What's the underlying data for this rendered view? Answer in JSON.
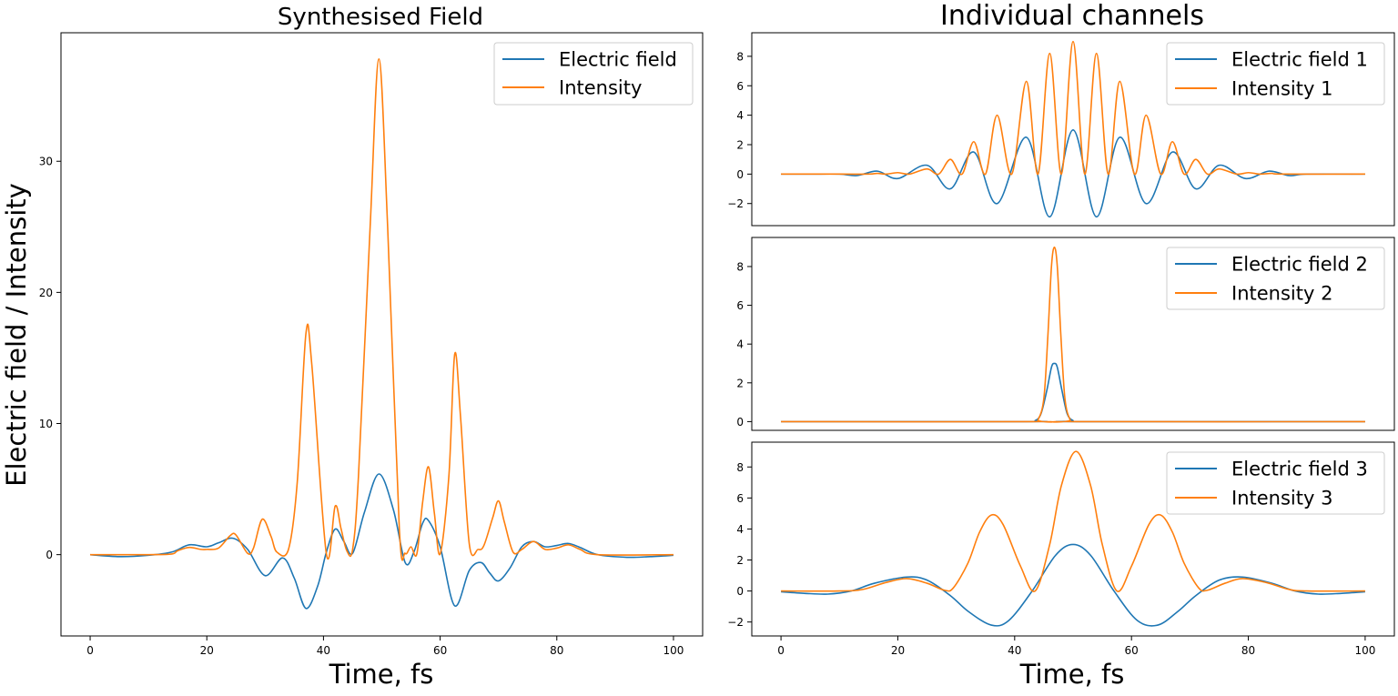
{
  "figure": {
    "left_title": "Synthesised Field",
    "right_title": "Individual channels",
    "left_xlabel": "Time, fs",
    "right_xlabel": "Time, fs",
    "left_ylabel": "Electric field / Intensity"
  },
  "colors": {
    "field": "#1f77b4",
    "intensity": "#ff7f0e"
  },
  "chart_data": [
    {
      "id": "synth",
      "type": "line",
      "title": "Synthesised Field",
      "xlabel": "Time, fs",
      "ylabel": "Electric field / Intensity",
      "xlim": [
        -5,
        105
      ],
      "ylim": [
        -6.2,
        39.8
      ],
      "xticks": [
        0,
        20,
        40,
        60,
        80,
        100
      ],
      "yticks": [
        0,
        10,
        20,
        30
      ],
      "legend": "top-right",
      "grid": false,
      "series": [
        {
          "name": "Electric field",
          "color": "#1f77b4",
          "points": [
            [
              0,
              0
            ],
            [
              5,
              -0.15
            ],
            [
              10,
              -0.05
            ],
            [
              14,
              0.2
            ],
            [
              17,
              0.75
            ],
            [
              20,
              0.6
            ],
            [
              22,
              0.9
            ],
            [
              24.5,
              1.25
            ],
            [
              27,
              0.4
            ],
            [
              30,
              -1.6
            ],
            [
              33,
              -0.25
            ],
            [
              35,
              -1.8
            ],
            [
              37,
              -4.1
            ],
            [
              39,
              -2.4
            ],
            [
              40.5,
              0.2
            ],
            [
              42,
              1.95
            ],
            [
              43.5,
              1.0
            ],
            [
              45,
              0.1
            ],
            [
              47,
              3.2
            ],
            [
              49.5,
              6.15
            ],
            [
              52,
              3.4
            ],
            [
              54,
              -0.6
            ],
            [
              55.5,
              0.2
            ],
            [
              57,
              2.4
            ],
            [
              58,
              2.6
            ],
            [
              60,
              0.6
            ],
            [
              62.5,
              -3.9
            ],
            [
              65,
              -1.2
            ],
            [
              67,
              -0.6
            ],
            [
              68.5,
              -1.4
            ],
            [
              70,
              -2.0
            ],
            [
              72,
              -1.0
            ],
            [
              74,
              0.6
            ],
            [
              76,
              1.0
            ],
            [
              78,
              0.6
            ],
            [
              80,
              0.7
            ],
            [
              82,
              0.85
            ],
            [
              84,
              0.55
            ],
            [
              87,
              0.0
            ],
            [
              92,
              -0.2
            ],
            [
              96,
              -0.15
            ],
            [
              100,
              -0.05
            ]
          ]
        },
        {
          "name": "Intensity",
          "color": "#ff7f0e",
          "points": [
            [
              0,
              0
            ],
            [
              10,
              0
            ],
            [
              14,
              0.05
            ],
            [
              15,
              0.3
            ],
            [
              17,
              0.55
            ],
            [
              19,
              0.4
            ],
            [
              20,
              0.4
            ],
            [
              22,
              0.5
            ],
            [
              24,
              1.45
            ],
            [
              25,
              1.5
            ],
            [
              27,
              0.1
            ],
            [
              28,
              0.5
            ],
            [
              29.5,
              2.7
            ],
            [
              31,
              1.4
            ],
            [
              32,
              0.2
            ],
            [
              34,
              0.4
            ],
            [
              35.5,
              5.5
            ],
            [
              37,
              16.9
            ],
            [
              38,
              14.5
            ],
            [
              40.5,
              0.05
            ],
            [
              42,
              3.7
            ],
            [
              43,
              2.0
            ],
            [
              44,
              0.3
            ],
            [
              45,
              0.4
            ],
            [
              46,
              6.0
            ],
            [
              48,
              25.0
            ],
            [
              49.5,
              37.8
            ],
            [
              51,
              25.0
            ],
            [
              53,
              2.0
            ],
            [
              54,
              0.1
            ],
            [
              55,
              0.6
            ],
            [
              56,
              0.05
            ],
            [
              57,
              4.0
            ],
            [
              58,
              6.7
            ],
            [
              59,
              3.2
            ],
            [
              60,
              0.05
            ],
            [
              61.5,
              6.0
            ],
            [
              62.5,
              15.3
            ],
            [
              63.5,
              10.5
            ],
            [
              65,
              0.8
            ],
            [
              66.5,
              0.4
            ],
            [
              67.5,
              0.7
            ],
            [
              69,
              2.8
            ],
            [
              70,
              4.1
            ],
            [
              71,
              2.5
            ],
            [
              72.5,
              0.2
            ],
            [
              74,
              0.4
            ],
            [
              76,
              1.0
            ],
            [
              78,
              0.4
            ],
            [
              80,
              0.5
            ],
            [
              82,
              0.75
            ],
            [
              84,
              0.4
            ],
            [
              87,
              0
            ],
            [
              100,
              0
            ]
          ]
        }
      ]
    },
    {
      "id": "ch1",
      "type": "line",
      "xlim": [
        -5,
        105
      ],
      "ylim": [
        -3.5,
        9.6
      ],
      "xticks": [],
      "yticks": [
        -2,
        0,
        2,
        4,
        6,
        8
      ],
      "legend": "top-right",
      "series": [
        {
          "name": "Electric field 1",
          "color": "#1f77b4",
          "points": [
            [
              0,
              0
            ],
            [
              5,
              0
            ],
            [
              10,
              0
            ],
            [
              13,
              -0.1
            ],
            [
              16.5,
              0.2
            ],
            [
              20,
              -0.3
            ],
            [
              25,
              0.6
            ],
            [
              29,
              -1.0
            ],
            [
              33,
              1.5
            ],
            [
              37,
              -2.0
            ],
            [
              42,
              2.5
            ],
            [
              46,
              -2.9
            ],
            [
              50,
              3.0
            ],
            [
              54,
              -2.9
            ],
            [
              58,
              2.5
            ],
            [
              62.5,
              -2.0
            ],
            [
              67,
              1.5
            ],
            [
              71,
              -1.0
            ],
            [
              75,
              0.6
            ],
            [
              79.5,
              -0.3
            ],
            [
              83.5,
              0.2
            ],
            [
              87,
              -0.1
            ],
            [
              90,
              0
            ],
            [
              100,
              0
            ]
          ]
        },
        {
          "name": "Intensity 1",
          "color": "#ff7f0e",
          "points": [
            [
              0,
              0
            ],
            [
              10,
              0
            ],
            [
              15,
              0
            ],
            [
              16.5,
              0.05
            ],
            [
              18,
              0
            ],
            [
              20,
              0.1
            ],
            [
              22,
              0
            ],
            [
              25,
              0.35
            ],
            [
              27,
              0
            ],
            [
              29,
              1.0
            ],
            [
              31,
              0
            ],
            [
              33,
              2.2
            ],
            [
              35,
              0
            ],
            [
              37,
              4.0
            ],
            [
              39.5,
              0
            ],
            [
              42,
              6.3
            ],
            [
              44,
              0
            ],
            [
              46,
              8.2
            ],
            [
              48,
              0
            ],
            [
              50,
              9.0
            ],
            [
              52,
              0
            ],
            [
              54,
              8.2
            ],
            [
              56,
              0
            ],
            [
              58,
              6.3
            ],
            [
              60.5,
              0
            ],
            [
              62.5,
              4.0
            ],
            [
              65,
              0
            ],
            [
              67,
              2.2
            ],
            [
              69,
              0
            ],
            [
              71,
              1.0
            ],
            [
              73,
              0
            ],
            [
              75,
              0.35
            ],
            [
              78,
              0
            ],
            [
              80,
              0.1
            ],
            [
              82,
              0
            ],
            [
              84,
              0.05
            ],
            [
              86,
              0
            ],
            [
              100,
              0
            ]
          ]
        }
      ]
    },
    {
      "id": "ch2",
      "type": "line",
      "xlim": [
        -5,
        105
      ],
      "ylim": [
        -0.45,
        9.5
      ],
      "xticks": [],
      "yticks": [
        0,
        2,
        4,
        6,
        8
      ],
      "legend": "top-right",
      "series": [
        {
          "name": "Electric field 2",
          "color": "#1f77b4",
          "points": [
            [
              0,
              0
            ],
            [
              42,
              0
            ],
            [
              43.5,
              0.05
            ],
            [
              44.5,
              0.4
            ],
            [
              45.5,
              1.6
            ],
            [
              46.3,
              2.8
            ],
            [
              46.8,
              3.0
            ],
            [
              47.3,
              2.8
            ],
            [
              48.1,
              1.6
            ],
            [
              49,
              0.4
            ],
            [
              50,
              0.05
            ],
            [
              51,
              0
            ],
            [
              100,
              0
            ]
          ]
        },
        {
          "name": "Intensity 2",
          "color": "#ff7f0e",
          "points": [
            [
              0,
              0
            ],
            [
              43,
              0
            ],
            [
              44,
              0.1
            ],
            [
              45,
              1.2
            ],
            [
              45.7,
              4.5
            ],
            [
              46.3,
              8.0
            ],
            [
              46.8,
              9.0
            ],
            [
              47.3,
              8.0
            ],
            [
              47.9,
              4.5
            ],
            [
              48.6,
              1.2
            ],
            [
              49.5,
              0.1
            ],
            [
              50.5,
              0
            ],
            [
              100,
              0
            ]
          ]
        }
      ]
    },
    {
      "id": "ch3",
      "type": "line",
      "xlabel": "Time, fs",
      "xlim": [
        -5,
        105
      ],
      "ylim": [
        -2.9,
        9.6
      ],
      "xticks": [
        0,
        20,
        40,
        60,
        80,
        100
      ],
      "yticks": [
        -2,
        0,
        2,
        4,
        6,
        8
      ],
      "legend": "top-right",
      "series": [
        {
          "name": "Electric field 3",
          "color": "#1f77b4",
          "points": [
            [
              0,
              -0.05
            ],
            [
              4,
              -0.15
            ],
            [
              8,
              -0.2
            ],
            [
              12,
              0.0
            ],
            [
              16,
              0.5
            ],
            [
              21.5,
              0.9
            ],
            [
              25,
              0.7
            ],
            [
              29,
              -0.3
            ],
            [
              32,
              -1.3
            ],
            [
              36,
              -2.2
            ],
            [
              39,
              -1.9
            ],
            [
              43,
              0.0
            ],
            [
              47,
              2.3
            ],
            [
              50,
              3.0
            ],
            [
              53,
              2.3
            ],
            [
              57,
              0.0
            ],
            [
              61,
              -1.9
            ],
            [
              64.5,
              -2.2
            ],
            [
              68,
              -1.3
            ],
            [
              71,
              -0.3
            ],
            [
              75,
              0.7
            ],
            [
              79,
              0.9
            ],
            [
              84,
              0.5
            ],
            [
              88,
              0.0
            ],
            [
              92,
              -0.2
            ],
            [
              96,
              -0.15
            ],
            [
              100,
              -0.05
            ]
          ]
        },
        {
          "name": "Intensity 3",
          "color": "#ff7f0e",
          "points": [
            [
              0,
              0
            ],
            [
              10,
              0
            ],
            [
              14,
              0.1
            ],
            [
              18,
              0.55
            ],
            [
              21.5,
              0.8
            ],
            [
              25,
              0.5
            ],
            [
              28,
              0.05
            ],
            [
              29.5,
              0.2
            ],
            [
              32,
              1.8
            ],
            [
              34,
              3.8
            ],
            [
              36,
              4.9
            ],
            [
              38,
              4.3
            ],
            [
              41,
              1.6
            ],
            [
              43.5,
              0.0
            ],
            [
              46,
              3.0
            ],
            [
              48,
              6.8
            ],
            [
              50.5,
              9.0
            ],
            [
              53,
              6.8
            ],
            [
              55,
              3.0
            ],
            [
              57.5,
              0.0
            ],
            [
              60,
              1.6
            ],
            [
              63,
              4.3
            ],
            [
              65,
              4.9
            ],
            [
              67,
              3.8
            ],
            [
              69,
              1.8
            ],
            [
              71.5,
              0.2
            ],
            [
              73,
              0.05
            ],
            [
              76,
              0.5
            ],
            [
              79,
              0.8
            ],
            [
              83,
              0.55
            ],
            [
              87,
              0.1
            ],
            [
              90,
              0
            ],
            [
              100,
              0
            ]
          ]
        }
      ]
    }
  ]
}
